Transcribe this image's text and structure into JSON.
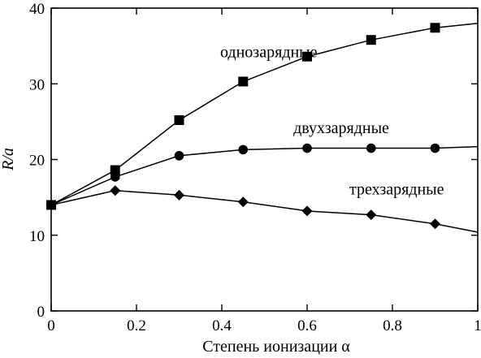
{
  "chart_data": {
    "type": "line",
    "title": "",
    "xlabel": "Степень ионизации α",
    "ylabel": "R/a",
    "xlim": [
      0,
      1
    ],
    "ylim": [
      0,
      40
    ],
    "xticks": [
      0,
      0.2,
      0.4,
      0.6,
      0.8,
      1
    ],
    "xtick_labels": [
      "0",
      "0.2",
      "0.4",
      "0.6",
      "0.8",
      "1"
    ],
    "yticks": [
      0,
      10,
      20,
      30,
      40
    ],
    "ytick_labels": [
      "0",
      "10",
      "20",
      "30",
      "40"
    ],
    "grid": false,
    "legend": "none",
    "series": [
      {
        "name": "однозарядные",
        "marker": "square",
        "x": [
          0,
          0.15,
          0.3,
          0.45,
          0.6,
          0.75,
          0.9,
          1.0
        ],
        "y": [
          14,
          18.6,
          25.2,
          30.3,
          33.6,
          35.8,
          37.4,
          38.0
        ],
        "markers_at": [
          0,
          1,
          2,
          3,
          4,
          5,
          6
        ]
      },
      {
        "name": "двухзарядные",
        "marker": "circle",
        "x": [
          0,
          0.15,
          0.3,
          0.45,
          0.6,
          0.75,
          0.9,
          1.0
        ],
        "y": [
          14,
          17.7,
          20.5,
          21.3,
          21.5,
          21.5,
          21.5,
          21.7
        ],
        "markers_at": [
          0,
          1,
          2,
          3,
          4,
          5,
          6
        ]
      },
      {
        "name": "трехзарядные",
        "marker": "diamond",
        "x": [
          0,
          0.15,
          0.3,
          0.45,
          0.6,
          0.75,
          0.9,
          1.0
        ],
        "y": [
          14,
          15.9,
          15.3,
          14.4,
          13.2,
          12.7,
          11.5,
          10.4
        ],
        "markers_at": [
          0,
          1,
          2,
          3,
          4,
          5,
          6
        ]
      }
    ],
    "annotations": [
      {
        "text": "однозарядные",
        "series": 0,
        "x": 0.51,
        "y": 33.5
      },
      {
        "text": "двухзарядные",
        "series": 1,
        "x": 0.68,
        "y": 23.5
      },
      {
        "text": "трехзарядные",
        "series": 2,
        "x": 0.81,
        "y": 15.4
      }
    ]
  }
}
